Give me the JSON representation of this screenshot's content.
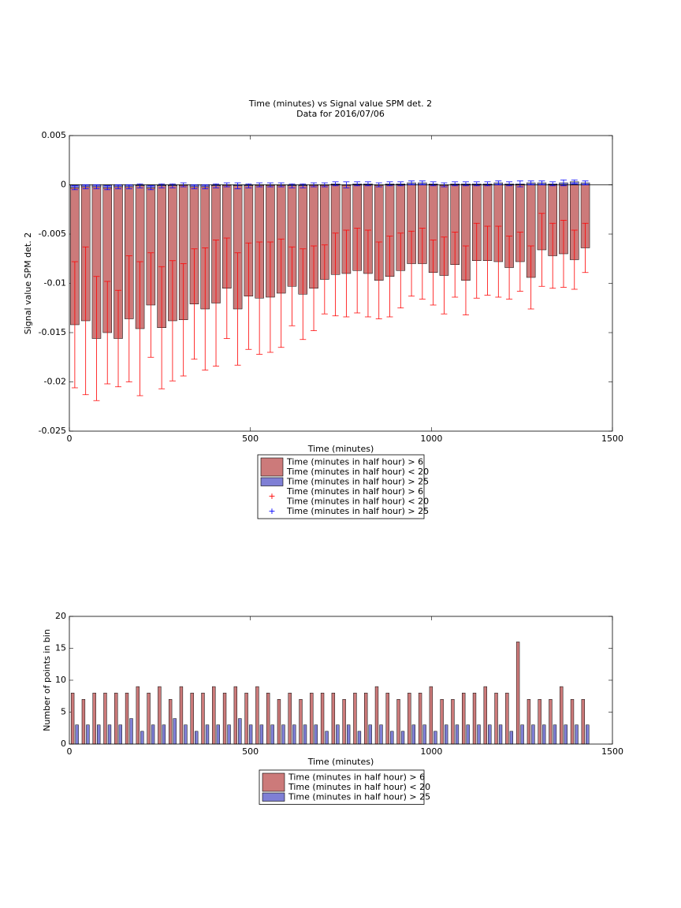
{
  "chart_data": [
    {
      "type": "bar",
      "title": "Time (minutes) vs Signal value SPM det. 2",
      "subtitle": "Data for 2016/07/06",
      "x_label": "Time (minutes)",
      "y_label": "Signal value SPM det. 2",
      "xlim": [
        0,
        1500
      ],
      "xticks": [
        0,
        500,
        1000,
        1500
      ],
      "ylim": [
        -0.025,
        0.005
      ],
      "yticks": [
        -0.025,
        -0.02,
        -0.015,
        -0.01,
        -0.005,
        0,
        0.005
      ],
      "x": [
        15,
        45,
        75,
        105,
        135,
        165,
        195,
        225,
        255,
        285,
        315,
        345,
        375,
        405,
        435,
        465,
        495,
        525,
        555,
        585,
        615,
        645,
        675,
        705,
        735,
        765,
        795,
        825,
        855,
        885,
        915,
        945,
        975,
        1005,
        1035,
        1065,
        1095,
        1125,
        1155,
        1185,
        1215,
        1245,
        1275,
        1305,
        1335,
        1365,
        1395,
        1425
      ],
      "series": [
        {
          "name": [
            "Time (minutes in half hour) > 6",
            "Time (minutes in half hour) < 20"
          ],
          "color": "#cc7a7a",
          "values": [
            -0.0142,
            -0.0138,
            -0.0156,
            -0.015,
            -0.0156,
            -0.0136,
            -0.0146,
            -0.0122,
            -0.0145,
            -0.0138,
            -0.0137,
            -0.0121,
            -0.0126,
            -0.012,
            -0.0105,
            -0.0126,
            -0.0113,
            -0.0115,
            -0.0114,
            -0.011,
            -0.0103,
            -0.0111,
            -0.0105,
            -0.0096,
            -0.0091,
            -0.009,
            -0.0087,
            -0.009,
            -0.0097,
            -0.0093,
            -0.0087,
            -0.008,
            -0.008,
            -0.0089,
            -0.0092,
            -0.0081,
            -0.0097,
            -0.0077,
            -0.0077,
            -0.0078,
            -0.0084,
            -0.0078,
            -0.0094,
            -0.0066,
            -0.0072,
            -0.007,
            -0.0076,
            -0.0064
          ]
        },
        {
          "name": "Time (minutes in half hour) > 25",
          "color": "#7f7fd5",
          "values": [
            -0.0003,
            -0.0002,
            -0.0002,
            -0.0003,
            -0.0002,
            -0.0002,
            -0.0001,
            -0.0003,
            -0.0001,
            -0.0001,
            0,
            -0.0002,
            -0.0002,
            -0.0001,
            0,
            -0.0001,
            -0.0001,
            0,
            0,
            0,
            -0.0001,
            -0.0001,
            0,
            0,
            0.0001,
            0,
            0.0001,
            0.0001,
            0,
            0.0001,
            0.0001,
            0.0002,
            0.0002,
            0.0001,
            0,
            0.0001,
            0.0001,
            0.0001,
            0.0001,
            0.0002,
            0.0001,
            0.0001,
            0.0002,
            0.0002,
            0.0001,
            0.0002,
            0.0003,
            0.0002
          ]
        }
      ],
      "error_series": [
        {
          "name": [
            "Time (minutes in half hour) > 6",
            "Time (minutes in half hour) < 20"
          ],
          "color": "#ff0000",
          "errors": [
            0.0064,
            0.0075,
            0.0063,
            0.0052,
            0.0049,
            0.0064,
            0.0068,
            0.0053,
            0.0062,
            0.0061,
            0.0057,
            0.0056,
            0.0062,
            0.0064,
            0.0051,
            0.0057,
            0.0054,
            0.0057,
            0.0056,
            0.0055,
            0.004,
            0.0046,
            0.0043,
            0.0035,
            0.0042,
            0.0044,
            0.0043,
            0.0044,
            0.0039,
            0.0041,
            0.0038,
            0.0033,
            0.0036,
            0.0033,
            0.0039,
            0.0033,
            0.0035,
            0.0038,
            0.0035,
            0.0036,
            0.0032,
            0.003,
            0.0032,
            0.0037,
            0.0033,
            0.0034,
            0.003,
            0.0025
          ]
        },
        {
          "name": "Time (minutes in half hour) > 25",
          "color": "#0000ff",
          "errors": [
            0.0002,
            0.0002,
            0.0002,
            0.0002,
            0.0002,
            0.0002,
            0.0002,
            0.0002,
            0.0002,
            0.0002,
            0.0002,
            0.0002,
            0.0002,
            0.0002,
            0.0002,
            0.0003,
            0.0002,
            0.0002,
            0.0002,
            0.0002,
            0.0002,
            0.0002,
            0.0002,
            0.0002,
            0.0002,
            0.0003,
            0.0002,
            0.0002,
            0.0002,
            0.0002,
            0.0002,
            0.0002,
            0.0002,
            0.0002,
            0.0002,
            0.0002,
            0.0002,
            0.0002,
            0.0002,
            0.0002,
            0.0002,
            0.0003,
            0.0002,
            0.0002,
            0.0002,
            0.0003,
            0.0002,
            0.0002
          ]
        }
      ]
    },
    {
      "type": "grouped_bar",
      "x_label": "Time (minutes)",
      "y_label": "Number of points in bin",
      "xlim": [
        0,
        1500
      ],
      "xticks": [
        0,
        500,
        1000,
        1500
      ],
      "ylim": [
        0,
        20
      ],
      "yticks": [
        0,
        5,
        10,
        15,
        20
      ],
      "x": [
        15,
        45,
        75,
        105,
        135,
        165,
        195,
        225,
        255,
        285,
        315,
        345,
        375,
        405,
        435,
        465,
        495,
        525,
        555,
        585,
        615,
        645,
        675,
        705,
        735,
        765,
        795,
        825,
        855,
        885,
        915,
        945,
        975,
        1005,
        1035,
        1065,
        1095,
        1125,
        1155,
        1185,
        1215,
        1245,
        1275,
        1305,
        1335,
        1365,
        1395,
        1425
      ],
      "series": [
        {
          "name": [
            "Time (minutes in half hour) > 6",
            "Time (minutes in half hour) < 20"
          ],
          "color": "#cc7a7a",
          "values": [
            8,
            7,
            8,
            8,
            8,
            8,
            9,
            8,
            9,
            7,
            9,
            8,
            8,
            9,
            8,
            9,
            8,
            9,
            8,
            7,
            8,
            7,
            8,
            8,
            8,
            7,
            8,
            8,
            9,
            8,
            7,
            8,
            8,
            9,
            7,
            7,
            8,
            8,
            9,
            8,
            8,
            16,
            7,
            7,
            7,
            9,
            7,
            7
          ]
        },
        {
          "name": "Time (minutes in half hour) > 25",
          "color": "#7f7fd5",
          "values": [
            3,
            3,
            3,
            3,
            3,
            4,
            2,
            3,
            3,
            4,
            3,
            2,
            3,
            3,
            3,
            4,
            3,
            3,
            3,
            3,
            3,
            3,
            3,
            2,
            3,
            3,
            2,
            3,
            3,
            2,
            2,
            3,
            3,
            2,
            3,
            3,
            3,
            3,
            3,
            3,
            2,
            3,
            3,
            3,
            3,
            3,
            3,
            3
          ]
        }
      ]
    }
  ]
}
